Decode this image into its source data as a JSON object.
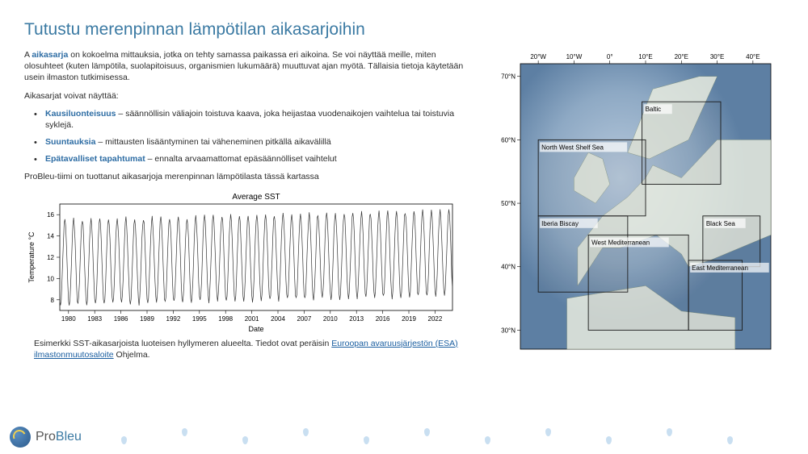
{
  "title": "Tutustu merenpinnan lämpötilan aikasarjoihin",
  "intro": {
    "prefix": "A ",
    "term": "aikasarja",
    "rest": " on kokoelma mittauksia, jotka on tehty samassa paikassa eri aikoina. Se voi näyttää meille, miten olosuhteet (kuten lämpötila, suolapitoisuus, organismien lukumäärä) muuttuvat ajan myötä. Tällaisia tietoja käytetään usein ilmaston tutkimisessa."
  },
  "list_intro": "Aikasarjat voivat näyttää:",
  "bullets": [
    {
      "term": "Kausiluonteisuus",
      "rest": " – säännöllisin väliajoin toistuva kaava, joka heijastaa vuodenaikojen vaihtelua tai toistuvia syklejä."
    },
    {
      "term": "Suuntauksia",
      "rest": " – mittausten lisääntyminen tai väheneminen pitkällä aikavälillä"
    },
    {
      "term": "Epätavalliset tapahtumat",
      "rest": " – ennalta arvaamattomat epäsäännölliset vaihtelut"
    }
  ],
  "chart_intro": "ProBleu-tiimi on tuottanut aikasarjoja merenpinnan lämpötilasta tässä kartassa",
  "chart": {
    "type": "line",
    "title": "Average SST",
    "xlabel": "Date",
    "ylabel": "Temperature °C",
    "x_ticks": [
      1980,
      1983,
      1986,
      1989,
      1992,
      1995,
      1998,
      2001,
      2004,
      2007,
      2010,
      2013,
      2016,
      2019,
      2022
    ],
    "y_ticks": [
      8,
      10,
      12,
      14,
      16
    ],
    "xlim": [
      1979,
      2024
    ],
    "ylim": [
      7,
      17
    ],
    "line_color": "#333333",
    "line_width": 0.7,
    "background_color": "#ffffff",
    "grid_color": "#d0d0d0",
    "axis_color": "#000000",
    "title_fontsize": 10,
    "label_fontsize": 9,
    "tick_fontsize": 8,
    "cycle_min_base": 7.5,
    "cycle_max_base": 15.5,
    "warming_per_year": 0.02,
    "noise_amp": 0.4
  },
  "caption": {
    "text": "Esimerkki SST-aikasarjoista luoteisen hyllymeren alueelta. Tiedot ovat peräisin ",
    "link_text": "Euroopan avaruusjärjestön (ESA) ilmastonmuutosaloite",
    "after": " Ohjelma."
  },
  "map": {
    "background_ocean": "#8ea9c4",
    "background_deep": "#5d7fa3",
    "land_color": "#e8ece0",
    "axis_color": "#000000",
    "tick_fontsize": 8,
    "lon_ticks": [
      "20°W",
      "10°W",
      "0°",
      "10°E",
      "20°E",
      "30°E",
      "40°E"
    ],
    "lon_values": [
      -20,
      -10,
      0,
      10,
      20,
      30,
      40
    ],
    "lat_ticks": [
      "70°N",
      "60°N",
      "50°N",
      "40°N",
      "30°N"
    ],
    "lat_values": [
      70,
      60,
      50,
      40,
      30
    ],
    "xlim": [
      -25,
      45
    ],
    "ylim": [
      27,
      72
    ],
    "regions": [
      {
        "name": "Baltic",
        "lon": [
          9,
          31
        ],
        "lat": [
          53,
          66
        ]
      },
      {
        "name": "North West Shelf Sea",
        "lon": [
          -20,
          10
        ],
        "lat": [
          48,
          60
        ]
      },
      {
        "name": "Iberia Biscay",
        "lon": [
          -20,
          5
        ],
        "lat": [
          36,
          48
        ]
      },
      {
        "name": "West Mediterranean",
        "lon": [
          -6,
          22
        ],
        "lat": [
          30,
          45
        ]
      },
      {
        "name": "Black Sea",
        "lon": [
          26,
          42
        ],
        "lat": [
          40,
          48
        ]
      },
      {
        "name": "East Mediterranean",
        "lon": [
          22,
          37
        ],
        "lat": [
          30,
          41
        ]
      }
    ],
    "region_stroke": "#1a1a1a",
    "region_fill": "rgba(100,100,100,0.08)",
    "region_label_fontsize": 8
  },
  "logo": {
    "brand_pro": "Pro",
    "brand_bleu": "Bleu"
  }
}
